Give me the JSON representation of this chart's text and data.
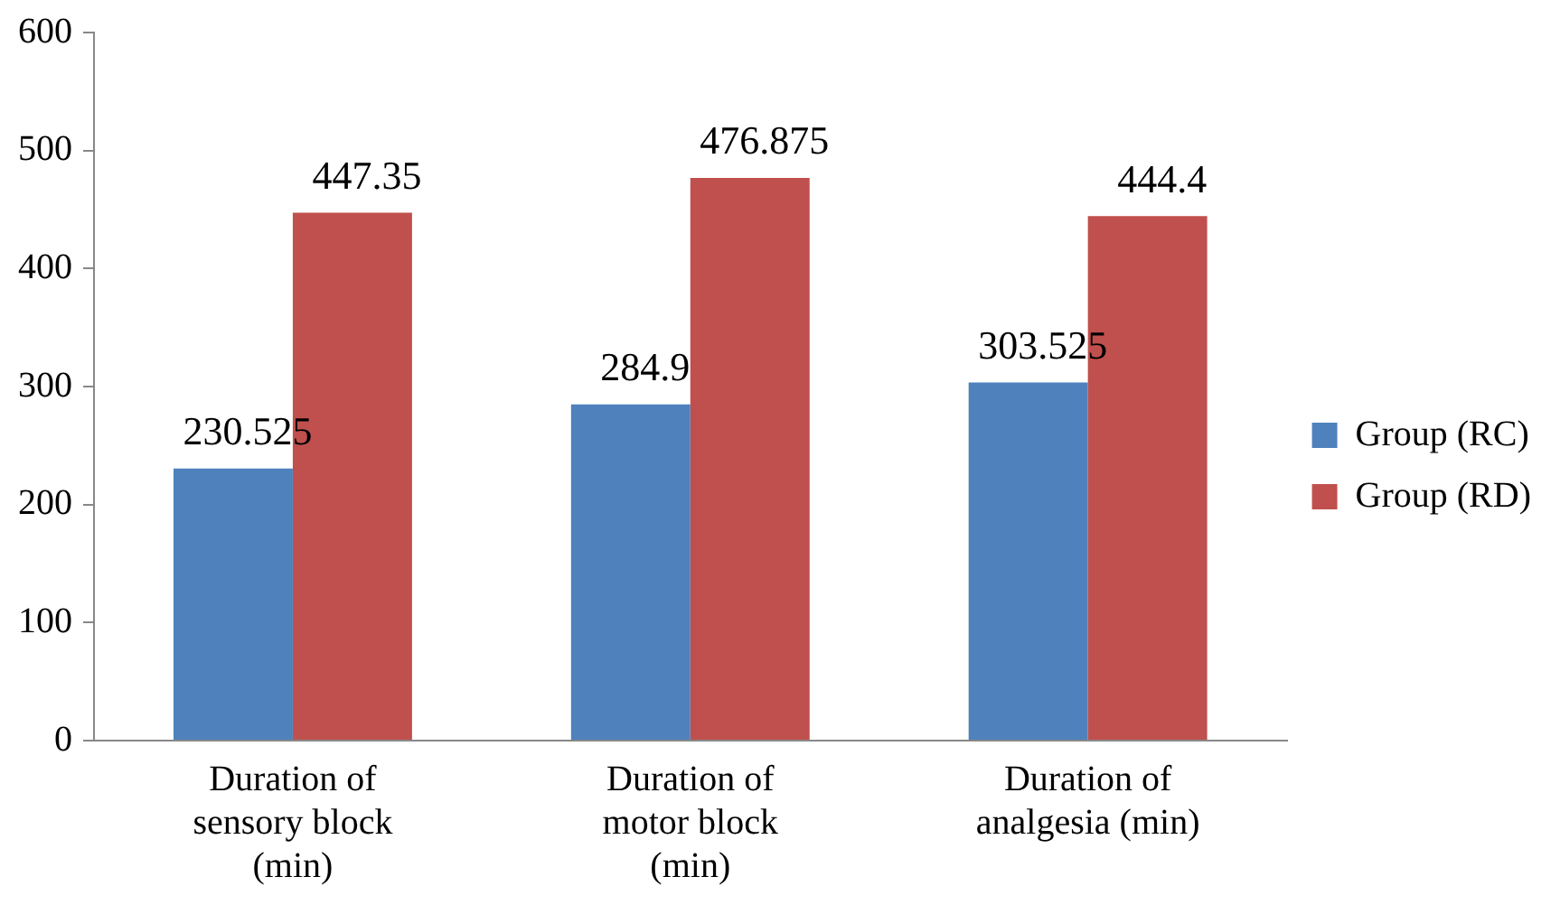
{
  "chart_data": {
    "type": "bar",
    "categories": [
      "Duration of sensory block (min)",
      "Duration of motor block (min)",
      "Duration of analgesia (min)"
    ],
    "series": [
      {
        "name": "Group (RC)",
        "color": "#4f81bd",
        "values": [
          230.525,
          284.9,
          303.525
        ]
      },
      {
        "name": "Group (RD)",
        "color": "#c0504d",
        "values": [
          447.35,
          476.875,
          444.4
        ]
      }
    ],
    "ylim": [
      0,
      600
    ],
    "yticks": [
      0,
      100,
      200,
      300,
      400,
      500,
      600
    ],
    "grid": false,
    "legend": "right",
    "data_labels": true
  }
}
